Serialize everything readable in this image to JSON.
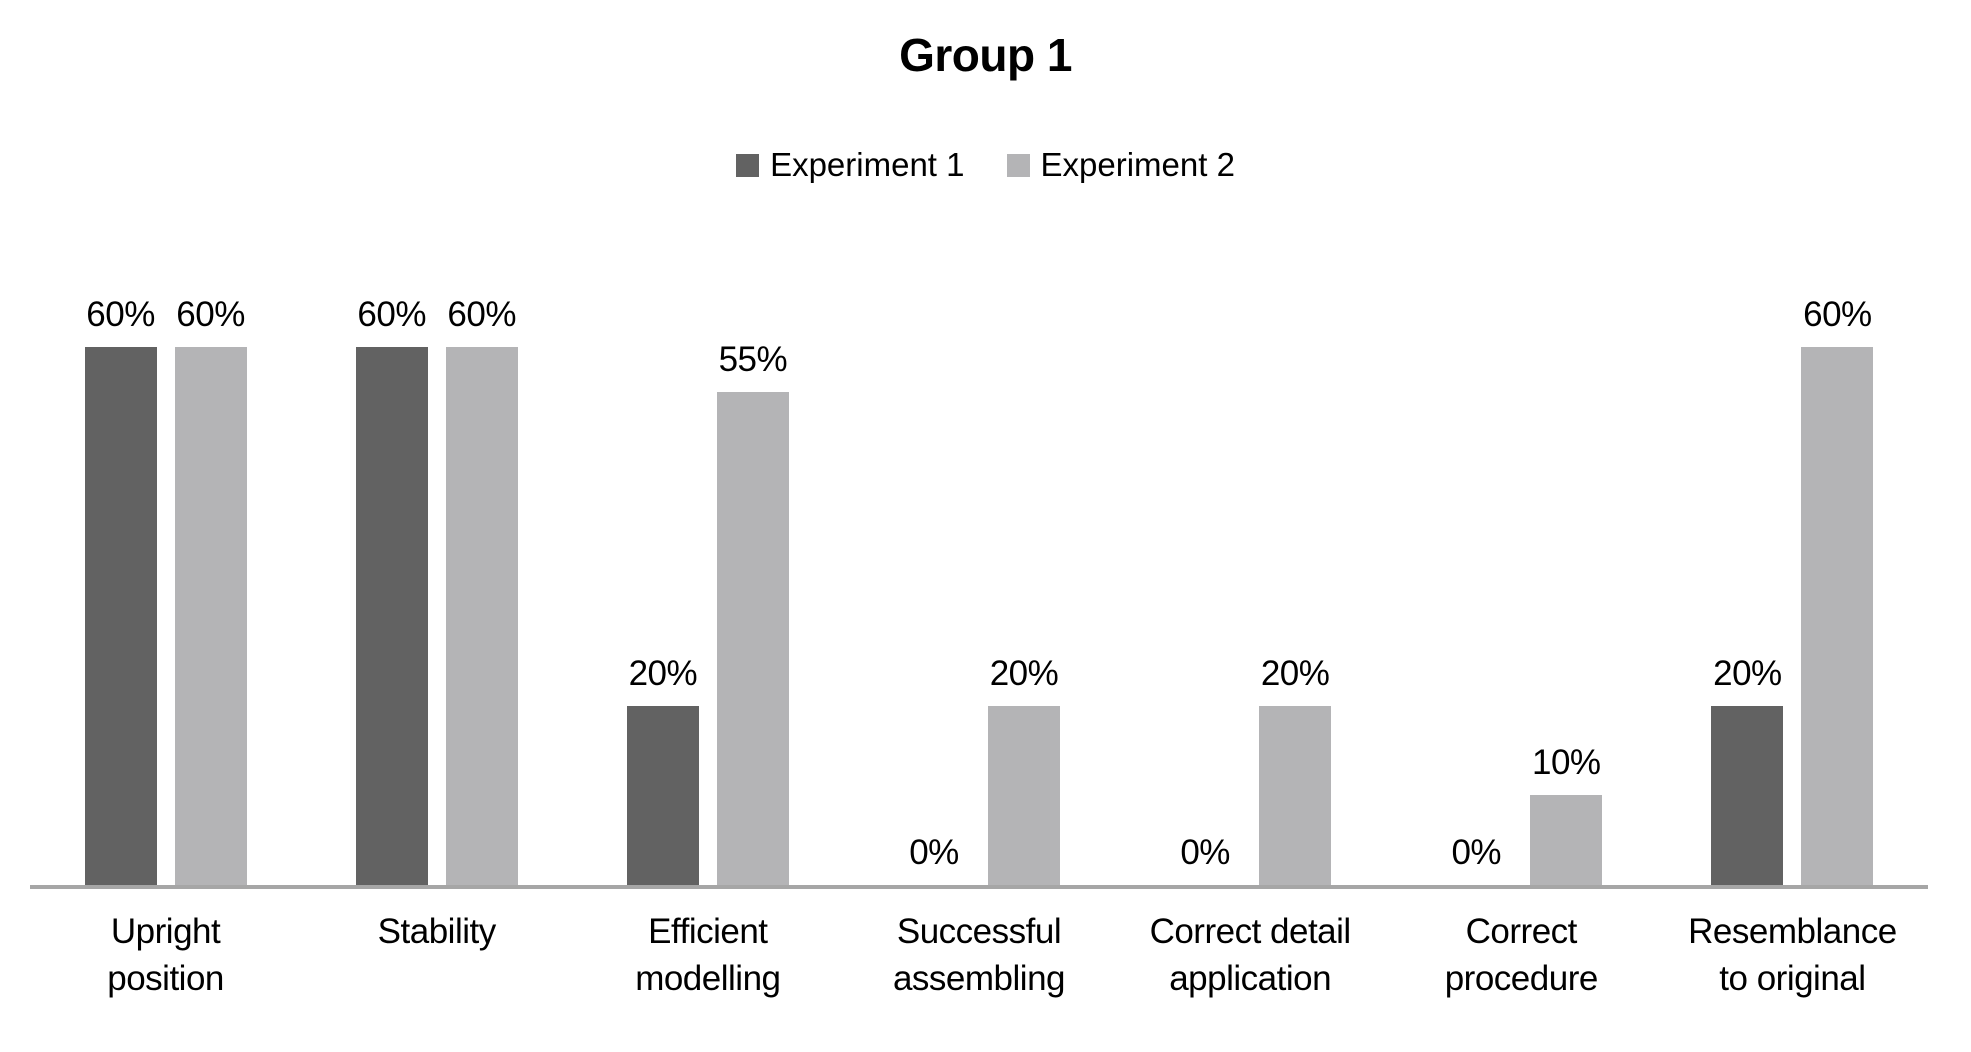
{
  "chart_data": {
    "type": "bar",
    "title": "Group 1",
    "categories": [
      "Upright position",
      "Stability",
      "Efficient modelling",
      "Successful assembling",
      "Correct detail application",
      "Correct procedure",
      "Resemblance to original"
    ],
    "category_label_lines": [
      [
        "Upright",
        "position"
      ],
      [
        "Stability"
      ],
      [
        "Efficient",
        "modelling"
      ],
      [
        "Successful",
        "assembling"
      ],
      [
        "Correct detail",
        "application"
      ],
      [
        "Correct",
        "procedure"
      ],
      [
        "Resemblance",
        "to original"
      ]
    ],
    "series": [
      {
        "name": "Experiment 1",
        "color": "#626262",
        "values": [
          60,
          60,
          20,
          0,
          0,
          0,
          20
        ],
        "labels": [
          "60%",
          "60%",
          "20%",
          "0%",
          "0%",
          "0%",
          "20%"
        ]
      },
      {
        "name": "Experiment 2",
        "color": "#b4b4b6",
        "values": [
          60,
          60,
          55,
          20,
          20,
          10,
          60
        ],
        "labels": [
          "60%",
          "60%",
          "55%",
          "20%",
          "20%",
          "10%",
          "60%"
        ]
      }
    ],
    "ylim": [
      0,
      70
    ],
    "xlabel": "",
    "ylabel": "",
    "grid": false,
    "y_axis_visible": false,
    "legend_position": "top",
    "axis_line_color": "#a6a6a6",
    "background_color": "#ffffff",
    "text_color": "#000000"
  }
}
